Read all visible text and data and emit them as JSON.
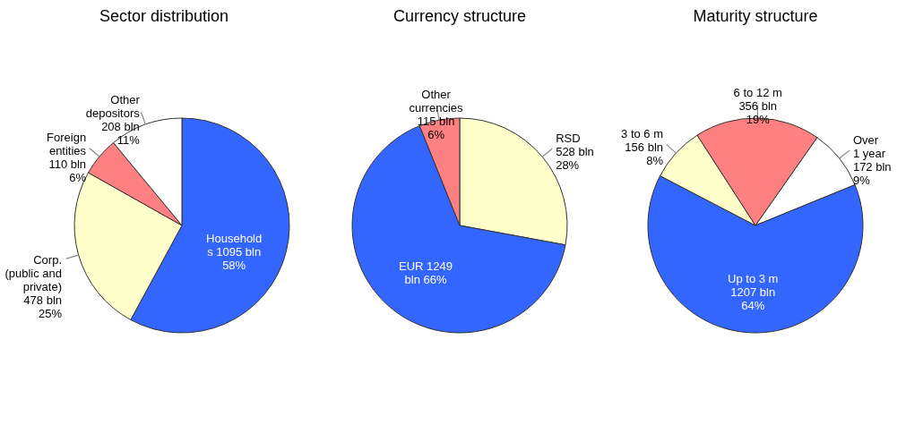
{
  "chart_data": [
    {
      "type": "pie",
      "title": "Sector distribution",
      "categories": [
        "Household\ns",
        "Corp.\n(public and\nprivate)",
        "Foreign\nentities",
        "Other\ndepositors"
      ],
      "values": [
        1095,
        478,
        110,
        208
      ],
      "colors": [
        "#3366ff",
        "#ffffcc",
        "#ff8080",
        "#ffffff"
      ],
      "value_labels": [
        " 1095 bln\n58%",
        "\n478 bln\n25%",
        "\n110 bln\n6%",
        "\n208 bln\n11%"
      ]
    },
    {
      "type": "pie",
      "title": "Currency structure",
      "categories": [
        "RSD",
        "EUR",
        "Other\ncurrencies"
      ],
      "values": [
        528,
        1249,
        115
      ],
      "colors": [
        "#ffffcc",
        "#3366ff",
        "#ff8080"
      ],
      "value_labels": [
        "\n528 bln\n28%",
        " 1249\nbln 66%",
        "\n115 bln\n6%"
      ]
    },
    {
      "type": "pie",
      "title": "Maturity structure",
      "categories": [
        "Over\n1 year",
        "Up to 3 m",
        "3 to 6 m",
        "6 to 12 m"
      ],
      "values": [
        172,
        1207,
        156,
        356
      ],
      "colors": [
        "#ffffff",
        "#3366ff",
        "#ffffcc",
        "#ff8080"
      ],
      "value_labels": [
        "\n172 bln\n9%",
        "\n1207 bln\n64%",
        "\n156 bln\n8%",
        "\n356 bln\n19%"
      ]
    }
  ]
}
